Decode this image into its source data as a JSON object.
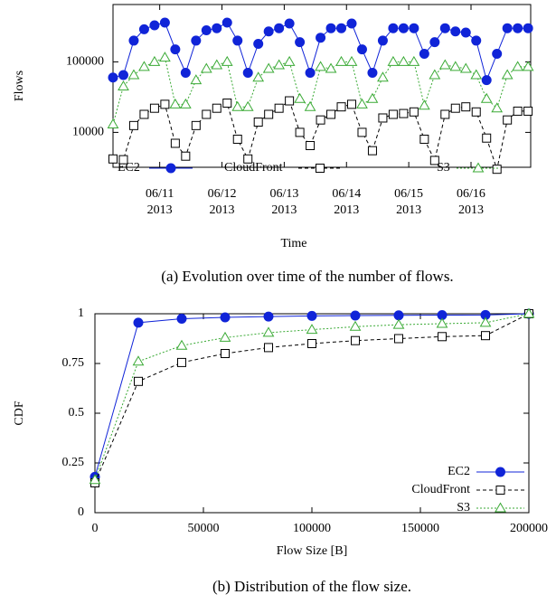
{
  "chart_data": [
    {
      "type": "line",
      "caption": "(a) Evolution over time of the number of flows.",
      "x_label": "Time",
      "y_label": "Flows",
      "log_y": true,
      "grid": false,
      "legend": "bottom",
      "x": [
        -18,
        -14,
        -10,
        -6,
        -2,
        2,
        6,
        10,
        14,
        18,
        22,
        26,
        30,
        34,
        38,
        42,
        46,
        50,
        54,
        58,
        62,
        66,
        70,
        74,
        78,
        82,
        86,
        90,
        94,
        98,
        102,
        106,
        110,
        114,
        118,
        122,
        126,
        130,
        134,
        138,
        142
      ],
      "xlim": [
        -18,
        143
      ],
      "xticks": [
        {
          "value": 0,
          "label": [
            "06/11",
            "2013"
          ]
        },
        {
          "value": 24,
          "label": [
            "06/12",
            "2013"
          ]
        },
        {
          "value": 48,
          "label": [
            "06/13",
            "2013"
          ]
        },
        {
          "value": 72,
          "label": [
            "06/14",
            "2013"
          ]
        },
        {
          "value": 96,
          "label": [
            "06/15",
            "2013"
          ]
        },
        {
          "value": 120,
          "label": [
            "06/16",
            "2013"
          ]
        }
      ],
      "ylim": [
        3200,
        650000
      ],
      "yticks": [
        10000,
        100000
      ],
      "series": [
        {
          "name": "EC2",
          "color": "#1024d8",
          "marker": "circle",
          "filled": true,
          "dash": "solid",
          "values": [
            60000,
            65000,
            200000,
            290000,
            330000,
            360000,
            150000,
            70000,
            200000,
            280000,
            300000,
            360000,
            200000,
            70000,
            180000,
            270000,
            300000,
            350000,
            190000,
            70000,
            220000,
            300000,
            300000,
            350000,
            150000,
            70000,
            200000,
            300000,
            300000,
            300000,
            130000,
            190000,
            300000,
            270000,
            260000,
            200000,
            55000,
            130000,
            300000,
            300000,
            300000
          ]
        },
        {
          "name": "CloudFront",
          "color": "#000000",
          "marker": "square",
          "filled": false,
          "dash": "dashed",
          "values": [
            4200,
            4100,
            12500,
            18000,
            22000,
            25000,
            7000,
            4600,
            12500,
            18000,
            22000,
            26000,
            8000,
            4200,
            14000,
            18000,
            22000,
            28000,
            10000,
            6500,
            15000,
            18000,
            23000,
            25000,
            10000,
            5500,
            16000,
            18000,
            18500,
            19500,
            8000,
            4000,
            18000,
            22000,
            23000,
            19500,
            8300,
            3000,
            15000,
            20000,
            20000
          ]
        },
        {
          "name": "S3",
          "color": "#3aaa35",
          "marker": "triangle",
          "filled": false,
          "dash": "dotted",
          "values": [
            13000,
            45000,
            65000,
            85000,
            100000,
            115000,
            25000,
            25000,
            55000,
            80000,
            90000,
            100000,
            23000,
            23000,
            60000,
            80000,
            90000,
            100000,
            30000,
            23000,
            85000,
            80000,
            100000,
            100000,
            25000,
            30000,
            60000,
            100000,
            100000,
            100000,
            24000,
            65000,
            90000,
            85000,
            80000,
            65000,
            30000,
            22000,
            65000,
            85000,
            85000
          ]
        }
      ]
    },
    {
      "type": "line",
      "caption": "(b) Distribution of the flow size.",
      "x_label": "Flow Size [B]",
      "y_label": "CDF",
      "log_y": false,
      "grid": false,
      "legend": "bottom-right",
      "x": [
        0,
        20000,
        40000,
        60000,
        80000,
        100000,
        120000,
        140000,
        160000,
        180000,
        200000
      ],
      "xlim": [
        0,
        200000
      ],
      "xticks": [
        0,
        50000,
        100000,
        150000,
        200000
      ],
      "ylim": [
        0,
        1
      ],
      "yticks": [
        0,
        0.25,
        0.5,
        0.75,
        1
      ],
      "series": [
        {
          "name": "EC2",
          "color": "#1024d8",
          "marker": "circle",
          "filled": true,
          "dash": "solid",
          "values": [
            0.18,
            0.955,
            0.975,
            0.982,
            0.986,
            0.989,
            0.991,
            0.992,
            0.993,
            0.994,
            1
          ]
        },
        {
          "name": "CloudFront",
          "color": "#000000",
          "marker": "square",
          "filled": false,
          "dash": "dashed",
          "values": [
            0.15,
            0.66,
            0.755,
            0.8,
            0.83,
            0.85,
            0.865,
            0.875,
            0.885,
            0.89,
            1
          ]
        },
        {
          "name": "S3",
          "color": "#3aaa35",
          "marker": "triangle",
          "filled": false,
          "dash": "dotted",
          "values": [
            0.165,
            0.76,
            0.84,
            0.88,
            0.905,
            0.92,
            0.935,
            0.945,
            0.95,
            0.955,
            1
          ]
        }
      ]
    }
  ]
}
